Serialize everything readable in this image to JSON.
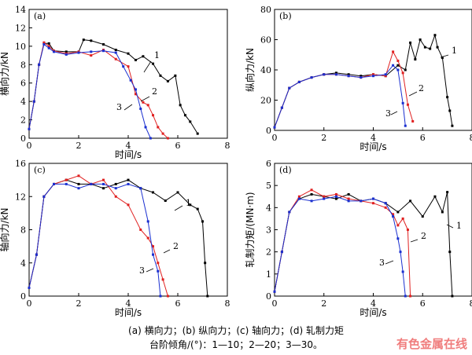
{
  "caption_line1": "(a)  横向力；(b)  纵向力；(c)  轴向力；(d)  轧制力矩",
  "caption_line2": "台阶倾角/(°)：1—10；2—20；3—30。",
  "watermark": "有色金属在线",
  "colors": {
    "s1": "#000000",
    "s2": "#e02020",
    "s3": "#1a2fd0"
  },
  "chart_data": [
    {
      "type": "line",
      "panel": "(a)",
      "xlabel": "时间/s",
      "ylabel": "横向力/kN",
      "xlim": [
        0,
        8
      ],
      "ylim": [
        0,
        14
      ],
      "xticks": [
        0,
        2,
        4,
        6,
        8
      ],
      "yticks": [
        0,
        2,
        4,
        6,
        8,
        10,
        12,
        14
      ],
      "annotations": [
        "1",
        "2",
        "3"
      ],
      "series": [
        {
          "id": "1",
          "x": [
            0,
            0.2,
            0.4,
            0.6,
            0.8,
            1.0,
            1.5,
            2.0,
            2.2,
            2.5,
            3.0,
            3.5,
            4.0,
            4.3,
            4.6,
            5.0,
            5.3,
            5.6,
            5.9,
            6.1,
            6.3,
            6.5,
            6.8
          ],
          "y": [
            1,
            4,
            8,
            10.3,
            10.3,
            9.5,
            9.4,
            9.4,
            10.7,
            10.6,
            10.2,
            9.6,
            9.2,
            8.5,
            8.9,
            8.1,
            6.8,
            6.2,
            6.8,
            3.6,
            2.5,
            1.8,
            0.5
          ]
        },
        {
          "id": "2",
          "x": [
            0,
            0.2,
            0.4,
            0.6,
            0.8,
            1.0,
            1.5,
            2.0,
            2.5,
            3.0,
            3.5,
            4.0,
            4.3,
            4.6,
            4.8,
            5.0,
            5.2,
            5.4,
            5.6
          ],
          "y": [
            1,
            4,
            8,
            10.4,
            10.0,
            9.5,
            9.2,
            9.4,
            9.0,
            9.6,
            8.6,
            7.8,
            4.8,
            3.9,
            3.6,
            2.5,
            1.2,
            0.5,
            0
          ]
        },
        {
          "id": "3",
          "x": [
            0,
            0.2,
            0.4,
            0.6,
            0.8,
            1.0,
            1.5,
            2.0,
            2.5,
            3.0,
            3.5,
            3.8,
            4.1,
            4.3,
            4.5,
            4.7,
            4.9
          ],
          "y": [
            1,
            4,
            8,
            10.2,
            9.8,
            9.4,
            9.1,
            9.3,
            9.4,
            9.5,
            9.3,
            7.8,
            6.3,
            5.3,
            3.2,
            1.2,
            0
          ]
        }
      ]
    },
    {
      "type": "line",
      "panel": "(b)",
      "xlabel": "时间/s",
      "ylabel": "纵向力/kN",
      "xlim": [
        0,
        8
      ],
      "ylim": [
        0,
        80
      ],
      "xticks": [
        0,
        2,
        4,
        6,
        8
      ],
      "yticks": [
        0,
        20,
        40,
        60,
        80
      ],
      "annotations": [
        "1",
        "2",
        "3"
      ],
      "series": [
        {
          "id": "1",
          "x": [
            0,
            0.3,
            0.6,
            1.0,
            1.5,
            2.0,
            2.5,
            3.0,
            3.5,
            4.0,
            4.5,
            5.0,
            5.3,
            5.5,
            5.7,
            5.9,
            6.1,
            6.3,
            6.5,
            6.6,
            6.8,
            7.0,
            7.1,
            7.2
          ],
          "y": [
            2,
            15,
            28,
            32,
            35,
            37,
            38,
            37,
            36,
            37,
            36,
            43,
            40,
            58,
            47,
            60,
            55,
            54,
            63,
            55,
            48,
            22,
            13,
            3
          ]
        },
        {
          "id": "2",
          "x": [
            0,
            0.3,
            0.6,
            1.0,
            1.5,
            2.0,
            2.5,
            3.0,
            3.5,
            4.0,
            4.5,
            4.8,
            5.0,
            5.2,
            5.4,
            5.6
          ],
          "y": [
            2,
            15,
            28,
            32,
            35,
            37,
            37,
            36,
            35,
            37,
            36,
            52,
            46,
            38,
            17,
            6
          ]
        },
        {
          "id": "3",
          "x": [
            0,
            0.3,
            0.6,
            1.0,
            1.5,
            2.0,
            2.5,
            3.0,
            3.5,
            4.0,
            4.5,
            4.8,
            5.0,
            5.2,
            5.3
          ],
          "y": [
            2,
            15,
            28,
            32,
            35,
            37,
            37,
            36,
            35,
            36,
            37,
            43,
            40,
            18,
            3
          ]
        }
      ]
    },
    {
      "type": "line",
      "panel": "(c)",
      "xlabel": "时间/s",
      "ylabel": "轴向力/kN",
      "xlim": [
        0,
        8
      ],
      "ylim": [
        0,
        16
      ],
      "xticks": [
        0,
        2,
        4,
        6,
        8
      ],
      "yticks": [
        0,
        4,
        8,
        12,
        16
      ],
      "annotations": [
        "1",
        "2",
        "3"
      ],
      "series": [
        {
          "id": "1",
          "x": [
            0,
            0.3,
            0.6,
            1.0,
            1.5,
            2.0,
            2.5,
            3.0,
            3.5,
            4.0,
            4.5,
            5.0,
            5.5,
            6.0,
            6.5,
            6.8,
            7.0,
            7.1,
            7.2
          ],
          "y": [
            1,
            5,
            12,
            13.5,
            14,
            13.5,
            13.5,
            13,
            13.5,
            14,
            13,
            12.5,
            11.5,
            12.5,
            11,
            10.5,
            9,
            4,
            0
          ]
        },
        {
          "id": "2",
          "x": [
            0,
            0.3,
            0.6,
            1.0,
            1.5,
            2.0,
            2.5,
            3.0,
            3.5,
            4.0,
            4.5,
            4.8,
            5.0,
            5.2,
            5.4,
            5.6
          ],
          "y": [
            1,
            5,
            12,
            13.5,
            14,
            14.5,
            13.5,
            14,
            12,
            11,
            8,
            7,
            6,
            4,
            2,
            0
          ]
        },
        {
          "id": "3",
          "x": [
            0,
            0.3,
            0.6,
            1.0,
            1.5,
            2.0,
            2.5,
            3.0,
            3.5,
            4.0,
            4.5,
            4.8,
            5.0,
            5.2,
            5.3
          ],
          "y": [
            1,
            5,
            12,
            13.5,
            13.5,
            13,
            13.5,
            13.5,
            13,
            13.5,
            13,
            9,
            5,
            3,
            0
          ]
        }
      ]
    },
    {
      "type": "line",
      "panel": "(d)",
      "xlabel": "时间/s",
      "ylabel": "轧制力矩/(MN·m)",
      "xlim": [
        0,
        8
      ],
      "ylim": [
        0,
        6
      ],
      "xticks": [
        0,
        2,
        4,
        6,
        8
      ],
      "yticks": [
        0,
        1,
        2,
        3,
        4,
        5,
        6
      ],
      "annotations": [
        "1",
        "2",
        "3"
      ],
      "series": [
        {
          "id": "1",
          "x": [
            0,
            0.3,
            0.6,
            1.0,
            1.5,
            2.0,
            2.5,
            3.0,
            3.5,
            4.0,
            4.5,
            5.0,
            5.5,
            6.0,
            6.5,
            6.8,
            7.0,
            7.1,
            7.2
          ],
          "y": [
            0.2,
            2,
            3.8,
            4.4,
            4.6,
            4.5,
            4.4,
            4.6,
            4.3,
            4.4,
            4.2,
            3.8,
            4.3,
            3.6,
            4.5,
            3.8,
            4.7,
            2,
            0
          ]
        },
        {
          "id": "2",
          "x": [
            0,
            0.3,
            0.6,
            1.0,
            1.5,
            2.0,
            2.5,
            3.0,
            3.5,
            4.0,
            4.5,
            4.8,
            5.0,
            5.2,
            5.4,
            5.5
          ],
          "y": [
            0.2,
            2,
            3.8,
            4.5,
            4.8,
            4.5,
            4.6,
            4.4,
            4.3,
            4.2,
            4.0,
            3.7,
            3.2,
            3.5,
            3.0,
            0
          ]
        },
        {
          "id": "3",
          "x": [
            0,
            0.3,
            0.6,
            1.0,
            1.5,
            2.0,
            2.5,
            3.0,
            3.5,
            4.0,
            4.5,
            4.8,
            5.0,
            5.1,
            5.2,
            5.3
          ],
          "y": [
            0.2,
            2,
            3.8,
            4.4,
            4.3,
            4.4,
            4.5,
            4.3,
            4.3,
            4.4,
            4.2,
            3.6,
            2.6,
            2.0,
            1.1,
            0
          ]
        }
      ]
    }
  ]
}
